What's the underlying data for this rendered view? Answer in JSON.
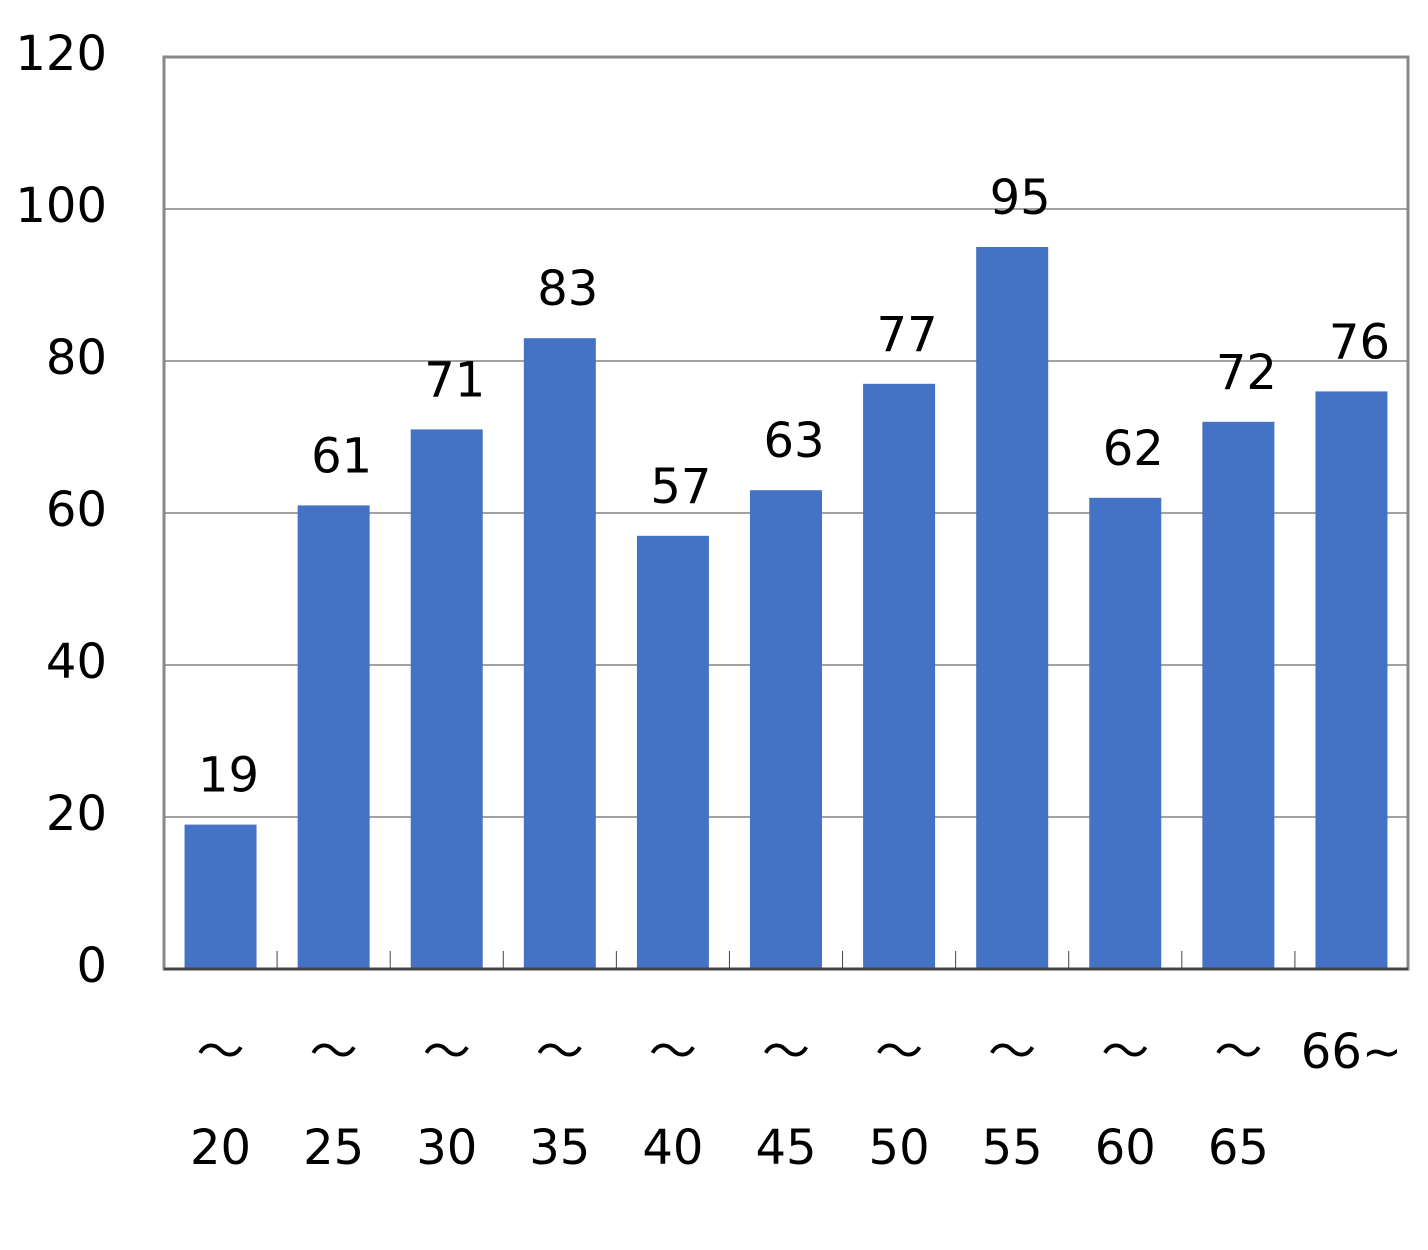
{
  "chart_data": {
    "type": "bar",
    "categories": [
      [
        "～",
        "20"
      ],
      [
        "～",
        "25"
      ],
      [
        "～",
        "30"
      ],
      [
        "～",
        "35"
      ],
      [
        "～",
        "40"
      ],
      [
        "～",
        "45"
      ],
      [
        "～",
        "50"
      ],
      [
        "～",
        "55"
      ],
      [
        "～",
        "60"
      ],
      [
        "～",
        "65"
      ],
      [
        "66~"
      ]
    ],
    "values": [
      19,
      61,
      71,
      83,
      57,
      63,
      77,
      95,
      62,
      72,
      76
    ],
    "color": "#4472c4",
    "ylim": [
      0,
      120
    ],
    "yticks": [
      0,
      20,
      40,
      60,
      80,
      100,
      120
    ],
    "grid": true
  }
}
